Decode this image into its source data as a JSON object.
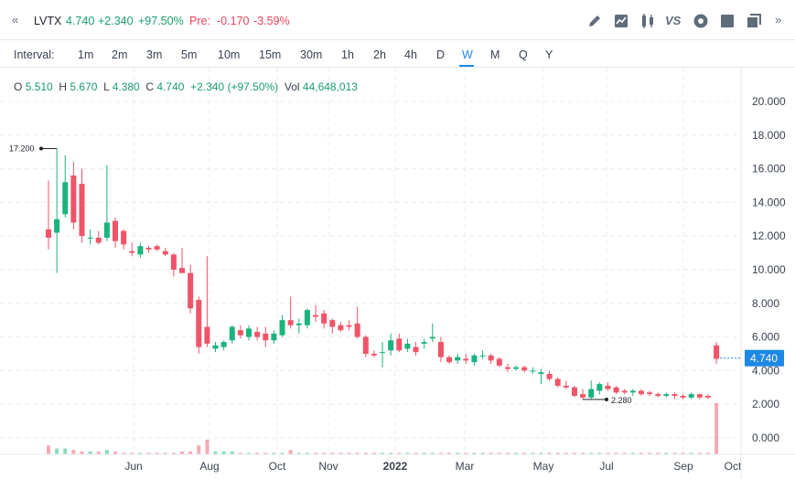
{
  "header": {
    "collapse_icon": "double-chevron-left-icon",
    "symbol": "LVTX",
    "last": "4.740",
    "change": "+2.340",
    "change_pct": "+97.50%",
    "pre_label": "Pre:",
    "pre_change": "-0.170",
    "pre_change_pct": "-3.59%",
    "tools": [
      "pencil-icon",
      "line-chart-icon",
      "candles-icon",
      "VS",
      "settings-icon",
      "square-icon",
      "copy-icon",
      "double-chevron-right-icon"
    ],
    "vs_label": "VS"
  },
  "intervals": {
    "label": "Interval:",
    "items": [
      "1m",
      "2m",
      "3m",
      "5m",
      "10m",
      "15m",
      "30m",
      "1h",
      "2h",
      "4h",
      "D",
      "W",
      "M",
      "Q",
      "Y"
    ],
    "active": "W"
  },
  "ohlc": {
    "o_label": "O",
    "o": "5.510",
    "h_label": "H",
    "h": "5.670",
    "l_label": "L",
    "l": "4.380",
    "c_label": "C",
    "c": "4.740",
    "chg": "+2.340 (+97.50%)",
    "vol_label": "Vol",
    "vol": "44,648,013"
  },
  "colors": {
    "up": "#1ab37c",
    "down": "#ef5469",
    "accent": "#1e88e5"
  },
  "chart_data": {
    "type": "candlestick",
    "title": "",
    "ylim": [
      -0.5,
      21
    ],
    "y_ticks": [
      "0.000",
      "2.000",
      "4.000",
      "6.000",
      "8.000",
      "10.000",
      "12.000",
      "14.000",
      "16.000",
      "18.000",
      "20.000"
    ],
    "x_ticks": [
      "Jun",
      "Aug",
      "Oct",
      "Nov",
      "2022",
      "Mar",
      "May",
      "Jul",
      "Sep",
      "Oct"
    ],
    "annotations": {
      "high": "17.200",
      "low": "2.280"
    },
    "last_price_label": "4.740",
    "candles": [
      [
        12.4,
        15.3,
        11.2,
        11.9
      ],
      [
        12.2,
        17.2,
        9.8,
        13.0
      ],
      [
        13.3,
        16.8,
        13.1,
        15.2
      ],
      [
        15.6,
        16.4,
        12.4,
        12.8
      ],
      [
        15.1,
        16.0,
        11.6,
        12.0
      ],
      [
        11.9,
        12.4,
        11.5,
        11.9
      ],
      [
        11.9,
        12.3,
        11.5,
        11.6
      ],
      [
        11.9,
        16.2,
        11.7,
        12.8
      ],
      [
        12.9,
        13.1,
        11.3,
        11.7
      ],
      [
        12.3,
        12.4,
        11.2,
        11.5
      ],
      [
        11.1,
        11.6,
        10.8,
        11.0
      ],
      [
        10.9,
        11.6,
        10.7,
        11.4
      ],
      [
        11.3,
        11.4,
        11.0,
        11.2
      ],
      [
        11.4,
        11.5,
        11.1,
        11.2
      ],
      [
        11.1,
        11.3,
        10.8,
        10.9
      ],
      [
        10.9,
        11.0,
        9.6,
        10.0
      ],
      [
        10.1,
        11.3,
        9.8,
        9.8
      ],
      [
        9.8,
        10.3,
        7.4,
        7.7
      ],
      [
        8.2,
        8.4,
        5.0,
        5.4
      ],
      [
        6.6,
        10.8,
        5.4,
        5.6
      ],
      [
        5.3,
        5.7,
        5.1,
        5.5
      ],
      [
        5.4,
        5.8,
        5.2,
        5.7
      ],
      [
        5.8,
        6.7,
        5.6,
        6.6
      ],
      [
        6.4,
        6.7,
        5.9,
        6.1
      ],
      [
        6.0,
        6.7,
        5.8,
        6.5
      ],
      [
        6.3,
        6.6,
        5.8,
        6.0
      ],
      [
        6.2,
        6.6,
        5.4,
        5.8
      ],
      [
        5.8,
        6.4,
        5.6,
        6.2
      ],
      [
        6.1,
        7.3,
        6.0,
        7.0
      ],
      [
        7.0,
        8.4,
        6.5,
        6.7
      ],
      [
        6.7,
        7.1,
        6.2,
        6.8
      ],
      [
        6.7,
        7.7,
        6.5,
        7.6
      ],
      [
        7.3,
        7.9,
        6.9,
        7.2
      ],
      [
        7.4,
        7.6,
        6.5,
        6.8
      ],
      [
        7.0,
        7.1,
        6.2,
        6.6
      ],
      [
        6.7,
        6.9,
        6.3,
        6.4
      ],
      [
        6.7,
        7.0,
        6.4,
        6.6
      ],
      [
        6.8,
        7.8,
        5.9,
        6.0
      ],
      [
        6.0,
        6.1,
        4.8,
        5.0
      ],
      [
        5.0,
        5.2,
        4.8,
        4.9
      ],
      [
        5.1,
        5.7,
        4.2,
        5.1
      ],
      [
        5.2,
        6.2,
        4.9,
        5.8
      ],
      [
        5.9,
        6.2,
        5.1,
        5.2
      ],
      [
        5.3,
        5.9,
        5.1,
        5.6
      ],
      [
        5.4,
        5.7,
        4.9,
        5.1
      ],
      [
        5.6,
        5.9,
        5.3,
        5.7
      ],
      [
        5.9,
        6.8,
        5.7,
        6.0
      ],
      [
        5.7,
        6.0,
        4.5,
        4.8
      ],
      [
        4.8,
        4.9,
        4.4,
        4.5
      ],
      [
        4.6,
        5.0,
        4.4,
        4.8
      ],
      [
        4.7,
        5.0,
        4.4,
        4.6
      ],
      [
        4.5,
        5.0,
        4.3,
        4.9
      ],
      [
        4.9,
        5.2,
        4.7,
        4.9
      ],
      [
        4.9,
        5.0,
        4.4,
        4.6
      ],
      [
        4.7,
        4.8,
        4.2,
        4.3
      ],
      [
        4.2,
        4.4,
        3.9,
        4.1
      ],
      [
        4.1,
        4.3,
        4.0,
        4.2
      ],
      [
        4.2,
        4.3,
        3.9,
        4.0
      ],
      [
        4.0,
        4.2,
        3.8,
        4.0
      ],
      [
        3.8,
        4.1,
        3.2,
        3.9
      ],
      [
        3.8,
        4.0,
        3.4,
        3.5
      ],
      [
        3.5,
        3.6,
        3.0,
        3.1
      ],
      [
        3.1,
        3.4,
        2.9,
        3.0
      ],
      [
        3.0,
        3.1,
        2.4,
        2.5
      ],
      [
        2.6,
        2.9,
        2.28,
        2.4
      ],
      [
        2.4,
        3.4,
        2.3,
        2.9
      ],
      [
        2.8,
        3.3,
        2.6,
        3.2
      ],
      [
        3.1,
        3.3,
        2.8,
        2.9
      ],
      [
        3.0,
        3.1,
        2.6,
        2.7
      ],
      [
        2.8,
        2.9,
        2.6,
        2.7
      ],
      [
        2.7,
        2.9,
        2.5,
        2.8
      ],
      [
        2.8,
        2.9,
        2.5,
        2.6
      ],
      [
        2.7,
        2.8,
        2.5,
        2.6
      ],
      [
        2.6,
        2.7,
        2.4,
        2.5
      ],
      [
        2.5,
        2.7,
        2.4,
        2.6
      ],
      [
        2.6,
        2.7,
        2.3,
        2.5
      ],
      [
        2.5,
        2.6,
        2.3,
        2.4
      ],
      [
        2.4,
        2.7,
        2.3,
        2.6
      ],
      [
        2.6,
        2.6,
        2.3,
        2.4
      ],
      [
        2.5,
        2.6,
        2.3,
        2.4
      ],
      [
        5.5,
        5.7,
        4.4,
        4.7
      ]
    ],
    "volumes": [
      0.6,
      0.4,
      0.4,
      0.3,
      0.2,
      0.2,
      0.2,
      0.3,
      0.2,
      0.1,
      0.1,
      0.1,
      0.1,
      0.1,
      0.1,
      0.1,
      0.2,
      0.2,
      0.6,
      1.0,
      0.2,
      0.2,
      0.2,
      0.1,
      0.1,
      0.1,
      0.1,
      0.1,
      0.1,
      0.3,
      0.1,
      0.1,
      0.1,
      0.1,
      0.1,
      0.1,
      0.1,
      0.1,
      0.1,
      0.1,
      0.1,
      0.1,
      0.1,
      0.1,
      0.1,
      0.1,
      0.1,
      0.1,
      0.1,
      0.1,
      0.1,
      0.1,
      0.1,
      0.1,
      0.1,
      0.1,
      0.1,
      0.1,
      0.1,
      0.1,
      0.1,
      0.1,
      0.1,
      0.1,
      0.1,
      0.1,
      0.1,
      0.1,
      0.1,
      0.1,
      0.1,
      0.1,
      0.1,
      0.1,
      0.1,
      0.1,
      0.1,
      0.1,
      0.1,
      0.1,
      3.5
    ]
  }
}
